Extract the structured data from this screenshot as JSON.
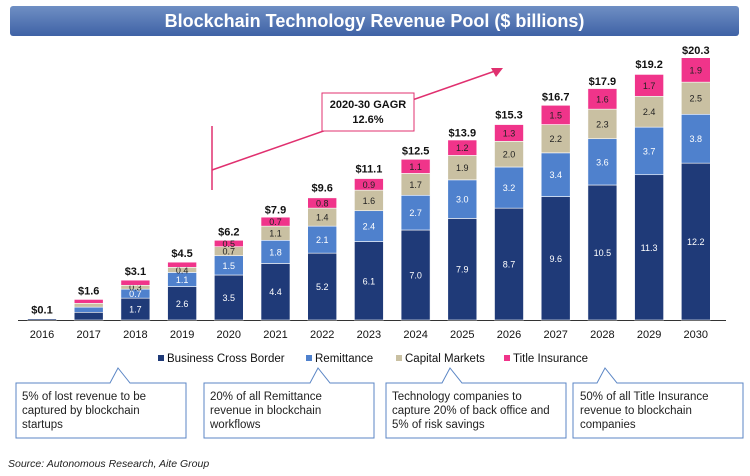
{
  "chart_data": {
    "type": "bar",
    "stacked": true,
    "title": "Blockchain Technology Revenue Pool ($ billions)",
    "categories": [
      "2016",
      "2017",
      "2018",
      "2019",
      "2020",
      "2021",
      "2022",
      "2023",
      "2024",
      "2025",
      "2026",
      "2027",
      "2028",
      "2029",
      "2030"
    ],
    "series": [
      {
        "name": "Business Cross Border",
        "color": "#1f3a78",
        "values": [
          0.1,
          0.6,
          1.7,
          2.6,
          3.5,
          4.4,
          5.2,
          6.1,
          7.0,
          7.9,
          8.7,
          9.6,
          10.5,
          11.3,
          12.2
        ]
      },
      {
        "name": "Remittance",
        "color": "#4f81cd",
        "values": [
          0,
          0.4,
          0.7,
          1.1,
          1.5,
          1.8,
          2.1,
          2.4,
          2.7,
          3.0,
          3.2,
          3.4,
          3.6,
          3.7,
          3.8
        ]
      },
      {
        "name": "Capital Markets",
        "color": "#c9c0a2",
        "values": [
          0,
          0.3,
          0.3,
          0.4,
          0.7,
          1.1,
          1.4,
          1.6,
          1.7,
          1.9,
          2.0,
          2.2,
          2.3,
          2.4,
          2.5
        ]
      },
      {
        "name": "Title Insurance",
        "color": "#f0348a",
        "values": [
          0,
          0.3,
          0.4,
          0.4,
          0.5,
          0.7,
          0.8,
          0.9,
          1.1,
          1.2,
          1.3,
          1.5,
          1.6,
          1.7,
          1.9
        ]
      }
    ],
    "segment_labels": [
      [
        null,
        null,
        "1.7",
        "2.6",
        "3.5",
        "4.4",
        "5.2",
        "6.1",
        "7.0",
        "7.9",
        "8.7",
        "9.6",
        "10.5",
        "11.3",
        "12.2"
      ],
      [
        null,
        null,
        "0.7",
        "1.1",
        "1.5",
        "1.8",
        "2.1",
        "2.4",
        "2.7",
        "3.0",
        "3.2",
        "3.4",
        "3.6",
        "3.7",
        "3.8"
      ],
      [
        null,
        null,
        "0.3",
        "0.4",
        "0.7",
        "1.1",
        "1.4",
        "1.6",
        "1.7",
        "1.9",
        "2.0",
        "2.2",
        "2.3",
        "2.4",
        "2.5"
      ],
      [
        null,
        null,
        null,
        null,
        "0.5",
        "0.7",
        "0.8",
        "0.9",
        "1.1",
        "1.2",
        "1.3",
        "1.5",
        "1.6",
        "1.7",
        "1.9"
      ]
    ],
    "totals": [
      "$0.1",
      "$1.6",
      "$3.1",
      "$4.5",
      "$6.2",
      "$7.9",
      "$9.6",
      "$11.1",
      "$12.5",
      "$13.9",
      "$15.3",
      "$16.7",
      "$17.9",
      "$19.2",
      "$20.3"
    ],
    "total_values": [
      0.1,
      1.6,
      3.1,
      4.5,
      6.2,
      7.9,
      9.6,
      11.1,
      12.5,
      13.9,
      15.3,
      16.7,
      17.9,
      19.2,
      20.3
    ],
    "ylim": [
      0,
      21
    ],
    "legend": "bottom",
    "grid": false,
    "annotation": {
      "text": [
        "2020-30 GAGR",
        "12.6%"
      ],
      "color": "#e0306f"
    }
  },
  "callouts": [
    "5% of lost revenue to be captured by blockchain startups",
    "20% of all Remittance revenue in blockchain workflows",
    "Technology companies to capture 20% of back office and 5% of risk savings",
    "50% of all Title Insurance revenue to blockchain companies"
  ],
  "source": "Source: Autonomous Research, Aite Group"
}
